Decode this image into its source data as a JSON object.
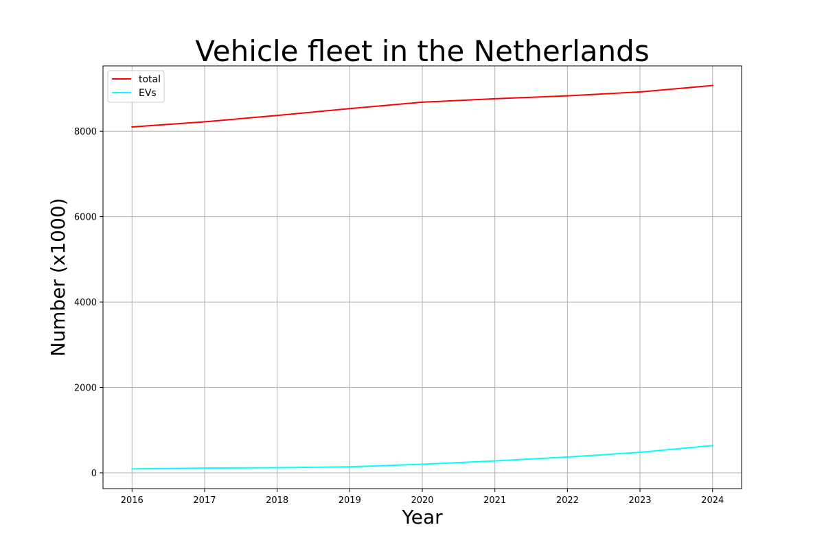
{
  "chart_data": {
    "type": "line",
    "title": "Vehicle fleet in the Netherlands",
    "xlabel": "Year",
    "ylabel": "Number (x1000)",
    "x": [
      2016,
      2017,
      2018,
      2019,
      2020,
      2021,
      2022,
      2023,
      2024
    ],
    "x_ticks": [
      "2016",
      "2017",
      "2018",
      "2019",
      "2020",
      "2021",
      "2022",
      "2023",
      "2024"
    ],
    "y_ticks": [
      "0",
      "2000",
      "4000",
      "6000",
      "8000"
    ],
    "xlim": [
      2015.6,
      2024.4
    ],
    "ylim": [
      -370,
      9530
    ],
    "grid": true,
    "legend_position": "top-left",
    "series": [
      {
        "name": "total",
        "color": "#ff0000",
        "values": [
          8100,
          8220,
          8370,
          8530,
          8680,
          8760,
          8830,
          8920,
          9070
        ]
      },
      {
        "name": "EVs",
        "color": "#00ffff",
        "values": [
          90,
          110,
          120,
          140,
          200,
          280,
          370,
          480,
          640
        ]
      }
    ]
  }
}
